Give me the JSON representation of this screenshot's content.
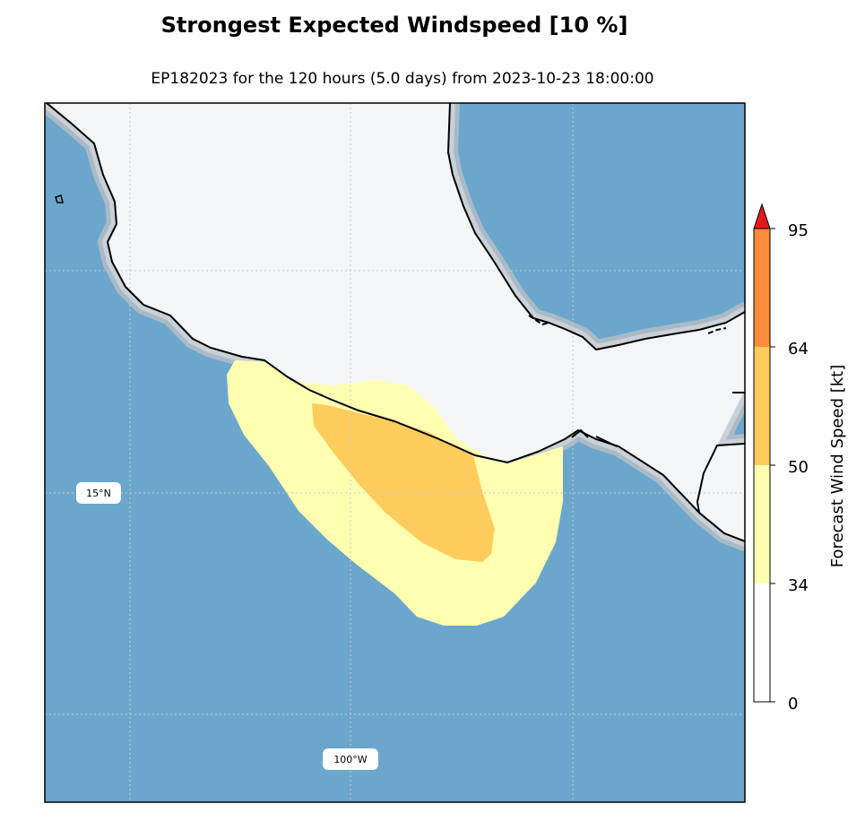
{
  "title": "Strongest Expected Windspeed [10 %]",
  "subtitle": "EP182023 for the 120 hours (5.0 days) from 2023-10-23 18:00:00",
  "map": {
    "lat_labels": [
      "15°N"
    ],
    "lon_labels": [
      "100°W"
    ],
    "ocean_color": "#6ba6cc",
    "land_color": "#f4f5f7"
  },
  "colorbar": {
    "label": "Forecast Wind Speed [kt]",
    "ticks": [
      "0",
      "34",
      "50",
      "64",
      "95"
    ],
    "colors": {
      "below_34": "#ffffff",
      "34_50": "#ffffb2",
      "50_64": "#fecc5c",
      "64_95": "#fd8d3c",
      "over_95": "#e31a1c"
    }
  }
}
